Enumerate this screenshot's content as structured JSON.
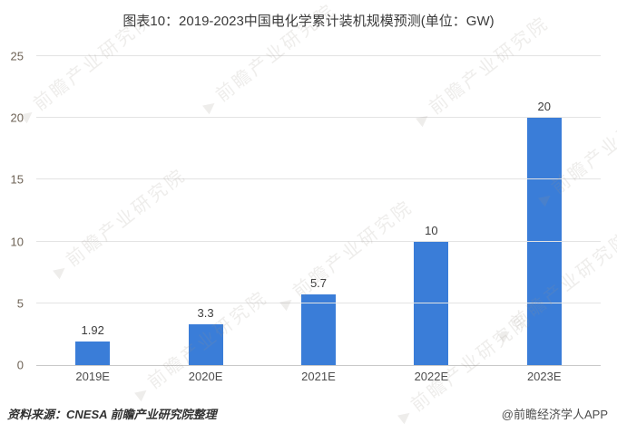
{
  "header": {
    "title": "图表10：2019-2023中国电化学累计装机规模预测(单位：GW)"
  },
  "chart_data": {
    "type": "bar",
    "title": "图表10：2019-2023中国电化学累计装机规模预测(单位：GW)",
    "categories": [
      "2019E",
      "2020E",
      "2021E",
      "2022E",
      "2023E"
    ],
    "values": [
      1.92,
      3.3,
      5.7,
      10,
      20
    ],
    "value_labels": [
      "1.92",
      "3.3",
      "5.7",
      "10",
      "20"
    ],
    "xlabel": "",
    "ylabel": "",
    "ylim": [
      0,
      25
    ],
    "yticks": [
      0,
      5,
      10,
      15,
      20,
      25
    ],
    "grid": true,
    "legend_position": "none",
    "bar_color": "#3a7dd8"
  },
  "footer": {
    "source": "资料来源：CNESA 前瞻产业研究院整理",
    "credit": "@前瞻经济学人APP"
  },
  "watermark": {
    "text": "前瞻产业研究院",
    "logo_glyph": "▶"
  }
}
